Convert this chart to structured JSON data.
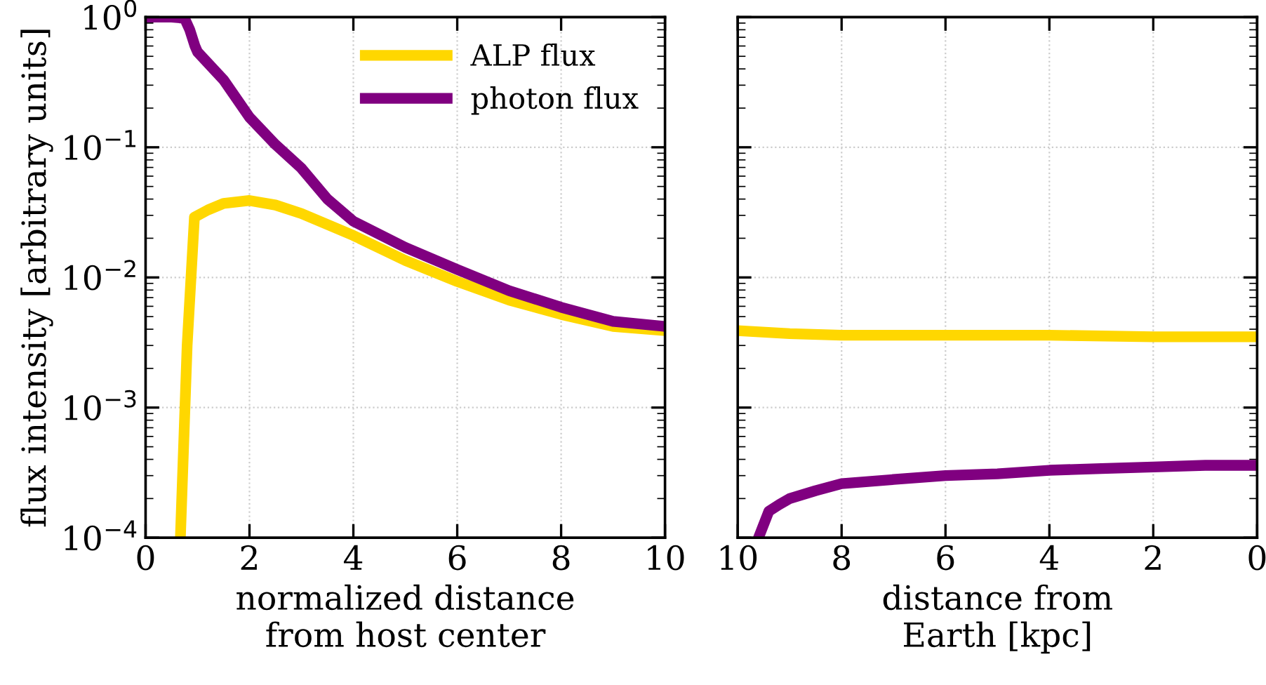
{
  "chart_data": [
    {
      "type": "line",
      "xlabel": "normalized distance\nfrom host center",
      "ylabel": "flux intensity [arbitrary units]",
      "log": "y",
      "grid": true,
      "legend": "top right",
      "xlim": [
        0,
        10
      ],
      "ylim": [
        0.0001,
        1
      ],
      "xticks": [
        0,
        2,
        4,
        6,
        8,
        10
      ],
      "yticks": [
        {
          "value": 0.0001,
          "label": "10$^{−4}$"
        },
        {
          "value": 0.001,
          "label": "10$^{−3}$"
        },
        {
          "value": 0.01,
          "label": "10$^{−2}$"
        },
        {
          "value": 0.1,
          "label": "10$^{−1}$"
        },
        {
          "value": 1,
          "label": "10$^{0}$"
        }
      ],
      "series": [
        {
          "name": "ALP flux",
          "color": "#ffd700",
          "x": [
            0.67,
            0.8,
            0.94,
            1.2,
            1.5,
            2,
            2.5,
            3,
            4,
            5,
            6,
            7,
            8,
            9,
            10
          ],
          "values": [
            0.0001,
            0.003,
            0.029,
            0.033,
            0.037,
            0.039,
            0.036,
            0.031,
            0.021,
            0.0135,
            0.0093,
            0.0067,
            0.0052,
            0.0042,
            0.0039
          ]
        },
        {
          "name": "photon flux",
          "color": "#800080",
          "x": [
            0,
            0.5,
            0.75,
            0.85,
            0.95,
            1.0,
            1.5,
            2,
            2.5,
            3,
            3.5,
            4,
            5,
            6,
            7,
            8,
            9,
            10
          ],
          "values": [
            1,
            1,
            0.98,
            0.8,
            0.6,
            0.54,
            0.33,
            0.17,
            0.105,
            0.069,
            0.04,
            0.027,
            0.017,
            0.0115,
            0.0079,
            0.0059,
            0.0046,
            0.0042
          ]
        }
      ]
    },
    {
      "type": "line",
      "xlabel": "distance from\nEarth [kpc]",
      "log": "y",
      "grid": true,
      "tick_labels": "x",
      "xlim": [
        10,
        0
      ],
      "ylim": [
        0.0001,
        1
      ],
      "xticks": [
        0,
        2,
        4,
        6,
        8,
        10
      ],
      "yticks": [
        {
          "value": 0.0001,
          "label": null
        },
        {
          "value": 0.001,
          "label": null
        },
        {
          "value": 0.01,
          "label": null
        },
        {
          "value": 0.1,
          "label": null
        },
        {
          "value": 1,
          "label": null
        }
      ],
      "series": [
        {
          "color": "#ffd700",
          "x": [
            10,
            9,
            8,
            6,
            4,
            2,
            0
          ],
          "values": [
            0.0039,
            0.0037,
            0.0036,
            0.0036,
            0.0036,
            0.0035,
            0.0035
          ]
        },
        {
          "color": "#800080",
          "x": [
            9.6,
            9.4,
            9.2,
            9,
            8.5,
            8,
            7,
            6,
            5,
            4,
            3,
            2,
            1,
            0
          ],
          "values": [
            0.0001,
            0.00016,
            0.00018,
            0.0002,
            0.00023,
            0.00026,
            0.00028,
            0.0003,
            0.00031,
            0.00033,
            0.00034,
            0.00035,
            0.00036,
            0.00036
          ]
        }
      ]
    }
  ]
}
